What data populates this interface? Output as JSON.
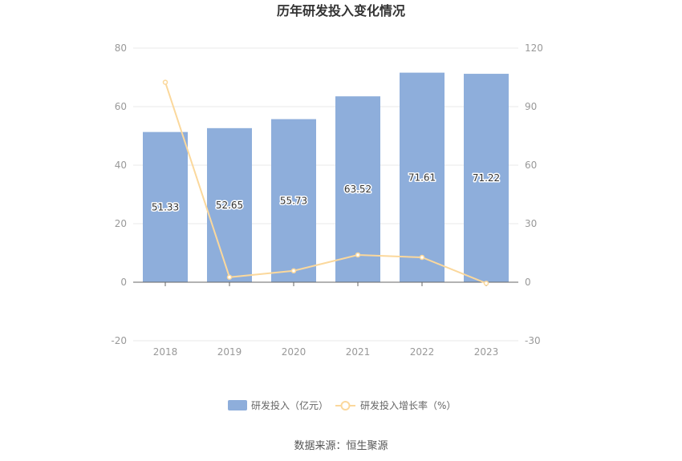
{
  "chart_data": {
    "type": "bar",
    "title": "历年研发投入变化情况",
    "categories": [
      "2018",
      "2019",
      "2020",
      "2021",
      "2022",
      "2023"
    ],
    "series": [
      {
        "name": "研发投入（亿元）",
        "type": "bar",
        "axis": "left",
        "color": "#8eaedb",
        "values": [
          51.33,
          52.65,
          55.73,
          63.52,
          71.61,
          71.22
        ],
        "labels": [
          "51.33",
          "52.65",
          "55.73",
          "63.52",
          "71.61",
          "71.22"
        ]
      },
      {
        "name": "研发投入增长率（%）",
        "type": "line",
        "axis": "right",
        "color": "#fbd89c",
        "values": [
          102.5,
          2.57,
          5.85,
          13.98,
          12.74,
          -0.54
        ]
      }
    ],
    "y_left": {
      "min": -20,
      "max": 80,
      "ticks": [
        -20,
        0,
        20,
        40,
        60,
        80
      ],
      "tick_labels": [
        "-20",
        "0",
        "20",
        "40",
        "60",
        "80"
      ]
    },
    "y_right": {
      "min": -30,
      "max": 120,
      "ticks": [
        -30,
        0,
        30,
        60,
        90,
        120
      ],
      "tick_labels": [
        "-30",
        "0",
        "30",
        "60",
        "90",
        "120"
      ]
    },
    "grid": true,
    "legend_position": "bottom-center",
    "source": "数据来源：恒生聚源"
  }
}
